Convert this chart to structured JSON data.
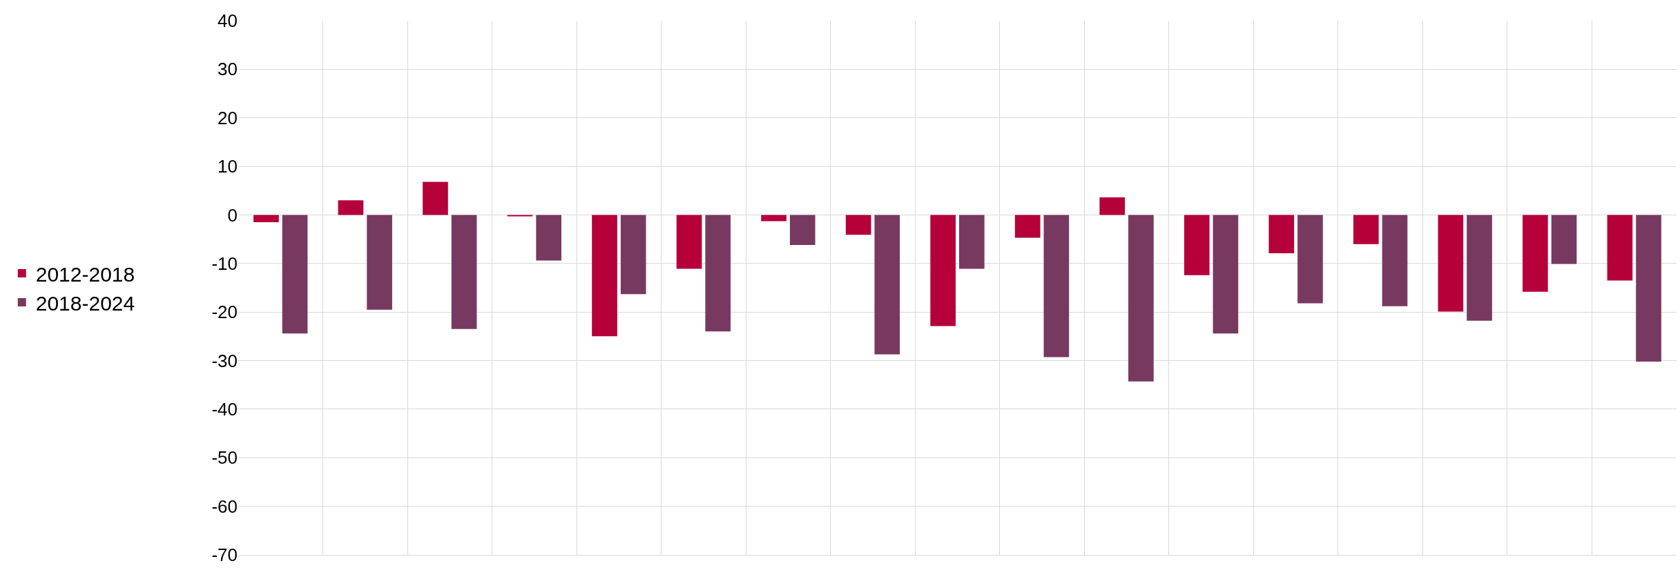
{
  "chart_data": {
    "type": "bar",
    "categories": [
      null,
      null,
      null,
      null,
      null,
      null,
      null,
      null,
      null,
      null,
      null,
      null,
      null,
      null,
      null,
      null,
      null
    ],
    "series": [
      {
        "name": "2012-2018",
        "color": "#b5003a",
        "values": [
          -1.5,
          3,
          6.8,
          -0.3,
          -25,
          -11.1,
          -1.3,
          -4.1,
          -22.9,
          -4.7,
          3.6,
          -12.4,
          -7.9,
          -6,
          -19.9,
          -15.8,
          -13.5
        ]
      },
      {
        "name": "2018-2024",
        "color": "#783961",
        "values": [
          -24.4,
          -19.5,
          -23.5,
          -9.4,
          -16.3,
          -24,
          -6.2,
          -28.7,
          -11.1,
          -29.3,
          -34.3,
          -24.4,
          -18.2,
          -18.8,
          -21.8,
          -10.1,
          -30.2
        ]
      }
    ],
    "ylim": [
      -70,
      40
    ],
    "yticks": [
      -70,
      -60,
      -50,
      -40,
      -30,
      -20,
      -10,
      0,
      10,
      20,
      30,
      40
    ],
    "grid": true,
    "legend": "left"
  }
}
